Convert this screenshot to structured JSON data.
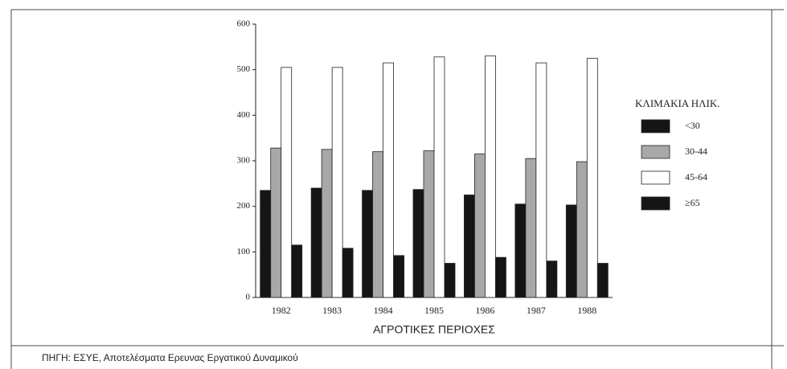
{
  "chart_data": {
    "type": "bar",
    "categories": [
      "1982",
      "1983",
      "1984",
      "1985",
      "1986",
      "1987",
      "1988"
    ],
    "series": [
      {
        "name": "<30",
        "color": "#151515",
        "values": [
          235,
          240,
          235,
          237,
          225,
          205,
          203
        ]
      },
      {
        "name": "30-44",
        "color": "#a8a8a8",
        "values": [
          328,
          325,
          320,
          322,
          315,
          305,
          298
        ]
      },
      {
        "name": "45-64",
        "color": "#ffffff",
        "values": [
          505,
          505,
          515,
          528,
          530,
          515,
          525
        ]
      },
      {
        "name": "≥65",
        "color": "#151515",
        "values": [
          115,
          108,
          92,
          75,
          88,
          80,
          75
        ]
      }
    ],
    "ylim": [
      0,
      600
    ],
    "yticks": [
      0,
      100,
      200,
      300,
      400,
      500,
      600
    ],
    "xlabel": "ΑΓΡΟΤΙΚΕΣ ΠΕΡΙΟΧΕΣ",
    "legend_title": "ΚΛΙΜΑΚΙΑ ΗΛΙΚ.",
    "legend_position": "right",
    "source": "ΠΗΓΗ: ΕΣΥΕ, Αποτελέσματα Ερευνας Εργατικού Δυναμικού"
  }
}
